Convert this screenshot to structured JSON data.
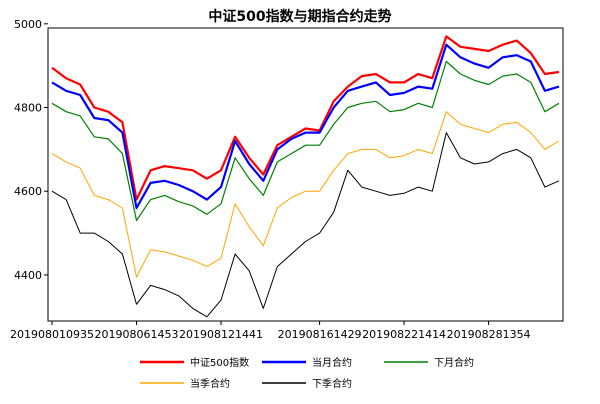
{
  "chart_data": {
    "type": "line",
    "title": "中证500指数与期指合约走势",
    "xlabel": "",
    "ylabel": "",
    "ylim": [
      4290,
      4990
    ],
    "yticks": [
      4400,
      4600,
      4800,
      5000
    ],
    "x_tick_labels": [
      "201908010935",
      "201908061453",
      "201908121441",
      "201908161429",
      "201908221414",
      "201908281354"
    ],
    "grid": false,
    "legend_position": "bottom",
    "x": [
      "201908010935",
      "201908020930",
      "201908021000",
      "201908051030",
      "201908051400",
      "201908061000",
      "201908061453",
      "201908061500",
      "201908071000",
      "201908081000",
      "201908091000",
      "201908121000",
      "201908121441",
      "201908121500",
      "201908131000",
      "201908131400",
      "201908141000",
      "201908151000",
      "201908161000",
      "201908161429",
      "201908161500",
      "201908191000",
      "201908201000",
      "201908211000",
      "201908221000",
      "201908221414",
      "201908231000",
      "201908231400",
      "201908261000",
      "201908271000",
      "201908281000",
      "201908281354",
      "201908291000",
      "201908291400",
      "201908301000",
      "201908301400",
      "201908301500"
    ],
    "series": [
      {
        "name": "中证500指数",
        "color": "#ff0000",
        "values": [
          4895,
          4870,
          4855,
          4800,
          4790,
          4765,
          4580,
          4650,
          4660,
          4655,
          4650,
          4630,
          4650,
          4730,
          4680,
          4640,
          4710,
          4730,
          4750,
          4745,
          4815,
          4850,
          4875,
          4880,
          4860,
          4860,
          4880,
          4870,
          4970,
          4945,
          4940,
          4935,
          4950,
          4960,
          4930,
          4880,
          4885
        ]
      },
      {
        "name": "当月合约",
        "color": "#0000ff",
        "values": [
          4860,
          4840,
          4830,
          4775,
          4770,
          4740,
          4560,
          4620,
          4625,
          4615,
          4600,
          4580,
          4610,
          4720,
          4665,
          4625,
          4700,
          4725,
          4740,
          4740,
          4800,
          4840,
          4850,
          4860,
          4830,
          4835,
          4850,
          4845,
          4950,
          4920,
          4905,
          4895,
          4920,
          4925,
          4910,
          4840,
          4850
        ]
      },
      {
        "name": "下月合约",
        "color": "#008000",
        "values": [
          4810,
          4790,
          4780,
          4730,
          4725,
          4690,
          4530,
          4580,
          4590,
          4575,
          4565,
          4545,
          4570,
          4680,
          4630,
          4590,
          4670,
          4690,
          4710,
          4710,
          4760,
          4800,
          4810,
          4815,
          4790,
          4795,
          4810,
          4800,
          4910,
          4880,
          4865,
          4855,
          4875,
          4880,
          4860,
          4790,
          4810
        ]
      },
      {
        "name": "当季合约",
        "color": "#ffa500",
        "values": [
          4690,
          4670,
          4655,
          4590,
          4580,
          4560,
          4395,
          4460,
          4455,
          4445,
          4435,
          4420,
          4440,
          4570,
          4515,
          4470,
          4560,
          4585,
          4600,
          4600,
          4650,
          4690,
          4700,
          4700,
          4680,
          4685,
          4700,
          4690,
          4790,
          4760,
          4750,
          4740,
          4760,
          4765,
          4740,
          4700,
          4720
        ]
      },
      {
        "name": "下季合约",
        "color": "#000000",
        "values": [
          4600,
          4580,
          4500,
          4500,
          4480,
          4450,
          4330,
          4375,
          4365,
          4350,
          4320,
          4300,
          4340,
          4450,
          4410,
          4320,
          4420,
          4450,
          4480,
          4500,
          4550,
          4650,
          4610,
          4600,
          4590,
          4595,
          4610,
          4600,
          4740,
          4680,
          4665,
          4670,
          4690,
          4700,
          4680,
          4610,
          4625
        ]
      }
    ]
  }
}
